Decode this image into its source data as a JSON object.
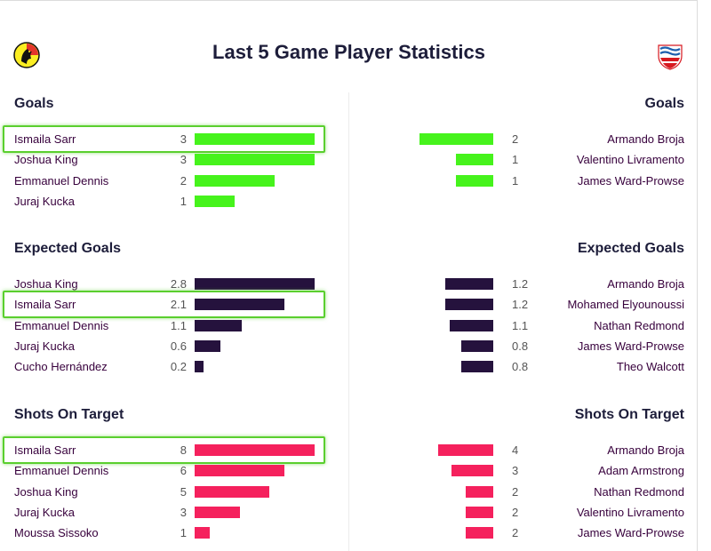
{
  "title": "Last 5 Game Player Statistics",
  "crests": {
    "home": "watford-crest",
    "away": "southampton-crest"
  },
  "colors": {
    "goals": "#46f31c",
    "expected_goals": "#25123d",
    "shots_on_target": "#f5215d",
    "highlight": "#5acf2e",
    "text": "#37003c"
  },
  "sections": [
    {
      "key": "goals",
      "title": "Goals",
      "max": 3,
      "home": [
        {
          "name": "Ismaila Sarr",
          "value": "3",
          "highlighted": true
        },
        {
          "name": "Joshua King",
          "value": "3"
        },
        {
          "name": "Emmanuel Dennis",
          "value": "2"
        },
        {
          "name": "Juraj Kucka",
          "value": "1"
        }
      ],
      "away": [
        {
          "name": "Armando Broja",
          "value": "2"
        },
        {
          "name": "Valentino Livramento",
          "value": "1"
        },
        {
          "name": "James Ward-Prowse",
          "value": "1"
        }
      ]
    },
    {
      "key": "expected_goals",
      "title": "Expected Goals",
      "max": 2.8,
      "home": [
        {
          "name": "Joshua King",
          "value": "2.8"
        },
        {
          "name": "Ismaila Sarr",
          "value": "2.1",
          "highlighted": true
        },
        {
          "name": "Emmanuel Dennis",
          "value": "1.1"
        },
        {
          "name": "Juraj Kucka",
          "value": "0.6"
        },
        {
          "name": "Cucho Hernández",
          "value": "0.2"
        }
      ],
      "away": [
        {
          "name": "Armando Broja",
          "value": "1.2"
        },
        {
          "name": "Mohamed Elyounoussi",
          "value": "1.2"
        },
        {
          "name": "Nathan Redmond",
          "value": "1.1"
        },
        {
          "name": "James Ward-Prowse",
          "value": "0.8"
        },
        {
          "name": "Theo Walcott",
          "value": "0.8"
        }
      ]
    },
    {
      "key": "shots_on_target",
      "title": "Shots On Target",
      "max": 8,
      "home": [
        {
          "name": "Ismaila Sarr",
          "value": "8",
          "highlighted": true
        },
        {
          "name": "Emmanuel Dennis",
          "value": "6"
        },
        {
          "name": "Joshua King",
          "value": "5"
        },
        {
          "name": "Juraj Kucka",
          "value": "3"
        },
        {
          "name": "Moussa Sissoko",
          "value": "1"
        }
      ],
      "away": [
        {
          "name": "Armando Broja",
          "value": "4"
        },
        {
          "name": "Adam Armstrong",
          "value": "3"
        },
        {
          "name": "Nathan Redmond",
          "value": "2"
        },
        {
          "name": "Valentino Livramento",
          "value": "2"
        },
        {
          "name": "James Ward-Prowse",
          "value": "2"
        }
      ]
    }
  ]
}
